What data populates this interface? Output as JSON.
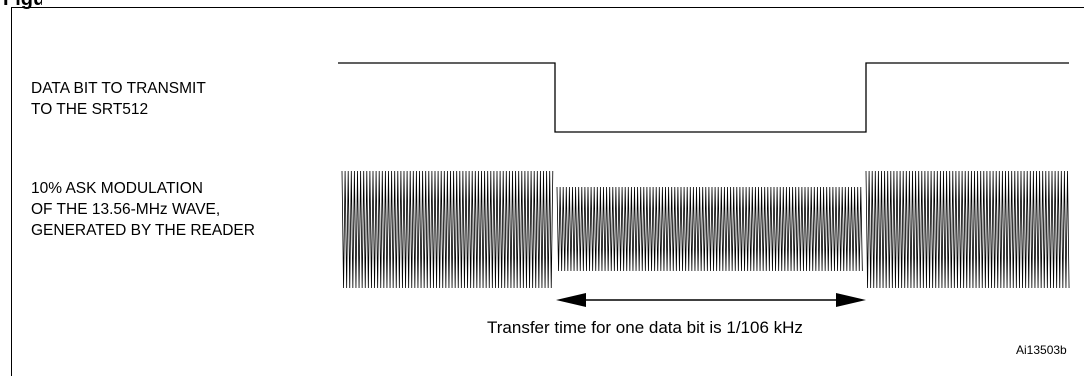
{
  "figure_label": "Figure",
  "signals": {
    "data_bit_label_lines": [
      "DATA BIT TO TRANSMIT",
      "TO THE  SRT512"
    ],
    "modulation_label_lines": [
      "10% ASK MODULATION",
      "OF THE 13.56-MHz  WAVE,",
      "GENERATED BY THE READER"
    ]
  },
  "transfer_caption": "Transfer time for one data bit is 1/106 kHz",
  "figure_id": "Ai13503b",
  "colors": {
    "line": "#000000",
    "background": "#ffffff"
  }
}
